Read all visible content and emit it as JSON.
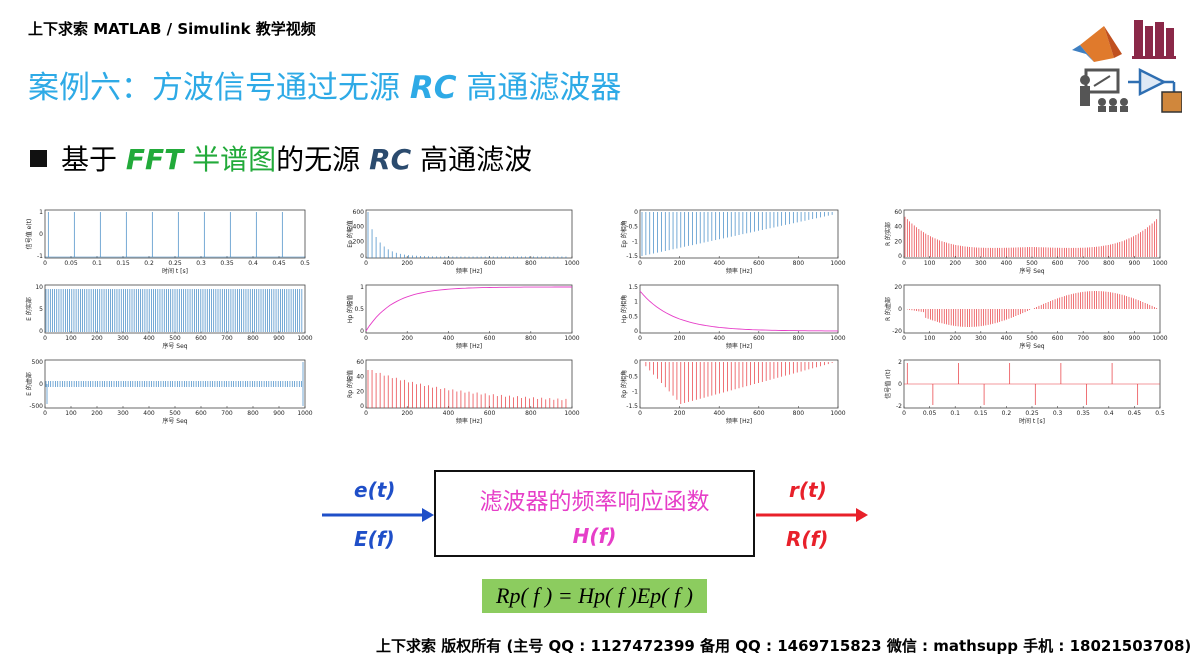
{
  "header": {
    "course": "上下求索 MATLAB / Simulink 教学视频",
    "title_parts": [
      "案例六：方波信号通过无源 ",
      "RC",
      " 高通滤波器"
    ]
  },
  "bullet": {
    "parts": [
      "基于 ",
      "FFT",
      " 半谱图",
      "的无源 ",
      "RC",
      " 高通滤波"
    ]
  },
  "icons": [
    "matlab-logo-icon",
    "books-icon",
    "teacher-icon",
    "simulink-block-icon"
  ],
  "colors": {
    "title": "#2eaae6",
    "blue_plot": "#3b86c4",
    "red_plot": "#e8363b",
    "magenta": "#e63ec8",
    "green": "#22aa3a",
    "formula_bg": "#8ccc5f",
    "left_arrow": "#1f4fc8",
    "right_arrow": "#e8202a"
  },
  "plots": [
    {
      "id": "e_t",
      "ylabel": "信号值 e(t)",
      "xlabel": "时间 t [s]",
      "xticks": [
        "0",
        "0.05",
        "0.1",
        "0.15",
        "0.2",
        "0.25",
        "0.3",
        "0.35",
        "0.4",
        "0.45",
        "0.5"
      ],
      "yticks": [
        "1",
        "0",
        "-1"
      ],
      "color": "#3b86c4",
      "kind": "pulse_train"
    },
    {
      "id": "Ep_mag",
      "ylabel": "Ep 的幅值",
      "xlabel": "频率 [Hz]",
      "xticks": [
        "0",
        "200",
        "400",
        "600",
        "800",
        "1000"
      ],
      "yticks": [
        "600",
        "400",
        "200",
        "0"
      ],
      "color": "#3b86c4",
      "kind": "decay_stems"
    },
    {
      "id": "Ep_phase",
      "ylabel": "Ep 的相角",
      "xlabel": "频率 [Hz]",
      "xticks": [
        "0",
        "200",
        "400",
        "600",
        "800",
        "1000"
      ],
      "yticks": [
        "0",
        "-0.5",
        "-1",
        "-1.5"
      ],
      "color": "#3b86c4",
      "kind": "ramp_stems"
    },
    {
      "id": "R_real",
      "ylabel": "R 的实部",
      "xlabel": "序号 Seq",
      "xticks": [
        "0",
        "100",
        "200",
        "300",
        "400",
        "500",
        "600",
        "700",
        "800",
        "900",
        "1000"
      ],
      "yticks": [
        "60",
        "40",
        "20",
        "0"
      ],
      "color": "#e8363b",
      "kind": "u_stems"
    },
    {
      "id": "E_real",
      "ylabel": "E 的实部",
      "xlabel": "序号 Seq",
      "xticks": [
        "0",
        "100",
        "200",
        "300",
        "400",
        "500",
        "600",
        "700",
        "800",
        "900",
        "1000"
      ],
      "yticks": [
        "10",
        "5",
        "0"
      ],
      "color": "#3b86c4",
      "kind": "dense_stems"
    },
    {
      "id": "Hp_mag",
      "ylabel": "Hp 的幅值",
      "xlabel": "频率 [Hz]",
      "xticks": [
        "0",
        "200",
        "400",
        "600",
        "800",
        "1000"
      ],
      "yticks": [
        "1",
        "0.5",
        "0"
      ],
      "color": "#e63ec8",
      "kind": "rise_curve"
    },
    {
      "id": "Hp_phase",
      "ylabel": "Hp 的相角",
      "xlabel": "频率 [Hz]",
      "xticks": [
        "0",
        "200",
        "400",
        "600",
        "800",
        "1000"
      ],
      "yticks": [
        "1.5",
        "1",
        "0.5",
        "0"
      ],
      "color": "#e63ec8",
      "kind": "fall_curve"
    },
    {
      "id": "R_imag",
      "ylabel": "R 的虚部",
      "xlabel": "序号 Seq",
      "xticks": [
        "0",
        "100",
        "200",
        "300",
        "400",
        "500",
        "600",
        "700",
        "800",
        "900",
        "1000"
      ],
      "yticks": [
        "20",
        "0",
        "-20"
      ],
      "color": "#e8363b",
      "kind": "sym_stems"
    },
    {
      "id": "E_imag",
      "ylabel": "E 的虚部",
      "xlabel": "序号 Seq",
      "xticks": [
        "0",
        "100",
        "200",
        "300",
        "400",
        "500",
        "600",
        "700",
        "800",
        "900",
        "1000"
      ],
      "yticks": [
        "500",
        "0",
        "-500"
      ],
      "color": "#3b86c4",
      "kind": "flat_stems"
    },
    {
      "id": "Rp_mag",
      "ylabel": "Rp 的幅值",
      "xlabel": "频率 [Hz]",
      "xticks": [
        "0",
        "200",
        "400",
        "600",
        "800",
        "1000"
      ],
      "yticks": [
        "60",
        "40",
        "20",
        "0"
      ],
      "color": "#e8363b",
      "kind": "decay_stems2"
    },
    {
      "id": "Rp_phase",
      "ylabel": "Rp 的相角",
      "xlabel": "频率 [Hz]",
      "xticks": [
        "0",
        "200",
        "400",
        "600",
        "800",
        "1000"
      ],
      "yticks": [
        "0",
        "-0.5",
        "-1",
        "-1.5"
      ],
      "color": "#e8363b",
      "kind": "v_stems"
    },
    {
      "id": "r_t",
      "ylabel": "信号值 r(t)",
      "xlabel": "时间 t [s]",
      "xticks": [
        "0",
        "0.05",
        "0.1",
        "0.15",
        "0.2",
        "0.25",
        "0.3",
        "0.35",
        "0.4",
        "0.45",
        "0.5"
      ],
      "yticks": [
        "2",
        "0",
        "-2"
      ],
      "color": "#e8363b",
      "kind": "spike_train"
    }
  ],
  "diagram": {
    "input_time": "e(t)",
    "input_freq": "E(f)",
    "filter_name": "滤波器的频率响应函数",
    "filter_symbol": "H(f)",
    "output_time": "r(t)",
    "output_freq": "R(f)",
    "formula": "Rp( f ) = Hp( f )Ep( f )"
  },
  "footer": {
    "text": "上下求索  版权所有 (主号 QQ : 1127472399   备用 QQ : 1469715823   微信 : mathsupp   手机 : 18021503708)"
  }
}
